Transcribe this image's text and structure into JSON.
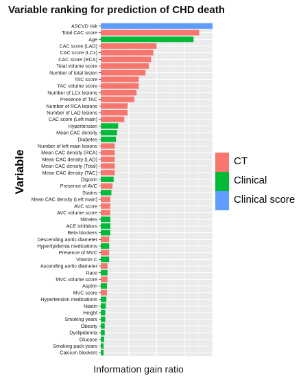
{
  "chart_data": {
    "type": "bar",
    "orientation": "horizontal",
    "title": "Variable ranking for prediction of CHD death",
    "xlabel": "Information gain ratio",
    "ylabel": "Variable",
    "xlim": [
      0,
      1
    ],
    "grid": true,
    "x_tick_labels_shown": false,
    "legend_position": "right",
    "legend": [
      {
        "name": "CT",
        "color": "#F8766D"
      },
      {
        "name": "Clinical",
        "color": "#00BA38"
      },
      {
        "name": "Clinical score",
        "color": "#619CFF"
      }
    ],
    "categories": [
      "ASCVD risk",
      "Total CAC score",
      "Age",
      "CAC score (LAD)",
      "CAC score (LCx)",
      "CAC score (RCA)",
      "Total volume score",
      "Number of total lesion",
      "TAC score",
      "TAC volume score",
      "Number of LCx lesions",
      "Presence of TAC",
      "Number of RCA lesions",
      "Number of LAD lesions",
      "CAC score (Left main)",
      "Hypertension",
      "Mean CAC density",
      "Diabetes",
      "Number of left main lesions",
      "Mean CAC density (RCA)",
      "Mean CAC density (LAD)",
      "Mean CAC density (Total)",
      "Mean CAC density (TAC)",
      "Digoxin",
      "Presence of AVC",
      "Statins",
      "Mean CAC density (Left main)",
      "AVC score",
      "AVC volume score",
      "Nitrates",
      "ACE inhibitors",
      "Beta blockers",
      "Descending aortic diameter",
      "Hyperlipidemia medications",
      "Presence of MVC",
      "Vitamin C",
      "Ascending aortic diameter",
      "Race",
      "MVC volume score",
      "Aspirin",
      "MVC score",
      "Hypertension medications",
      "Niacin",
      "Height",
      "Smoking years",
      "Obesity",
      "Dyslipidemia",
      "Glucose",
      "Smoking pack years",
      "Calcium blockers"
    ],
    "values": [
      1.0,
      0.88,
      0.83,
      0.5,
      0.47,
      0.45,
      0.43,
      0.4,
      0.34,
      0.34,
      0.32,
      0.3,
      0.24,
      0.24,
      0.21,
      0.155,
      0.145,
      0.135,
      0.125,
      0.125,
      0.125,
      0.125,
      0.125,
      0.115,
      0.105,
      0.095,
      0.085,
      0.085,
      0.085,
      0.085,
      0.085,
      0.085,
      0.075,
      0.075,
      0.075,
      0.075,
      0.06,
      0.06,
      0.06,
      0.055,
      0.055,
      0.05,
      0.045,
      0.04,
      0.04,
      0.035,
      0.035,
      0.03,
      0.025,
      0.025
    ],
    "groups": [
      "Clinical score",
      "CT",
      "Clinical",
      "CT",
      "CT",
      "CT",
      "CT",
      "CT",
      "CT",
      "CT",
      "CT",
      "CT",
      "CT",
      "CT",
      "CT",
      "Clinical",
      "Clinical",
      "Clinical",
      "CT",
      "CT",
      "CT",
      "CT",
      "CT",
      "Clinical",
      "CT",
      "Clinical",
      "CT",
      "CT",
      "CT",
      "Clinical",
      "Clinical",
      "Clinical",
      "CT",
      "Clinical",
      "CT",
      "Clinical",
      "CT",
      "Clinical",
      "CT",
      "Clinical",
      "CT",
      "Clinical",
      "Clinical",
      "Clinical",
      "Clinical",
      "Clinical",
      "Clinical",
      "Clinical",
      "Clinical",
      "Clinical"
    ]
  }
}
